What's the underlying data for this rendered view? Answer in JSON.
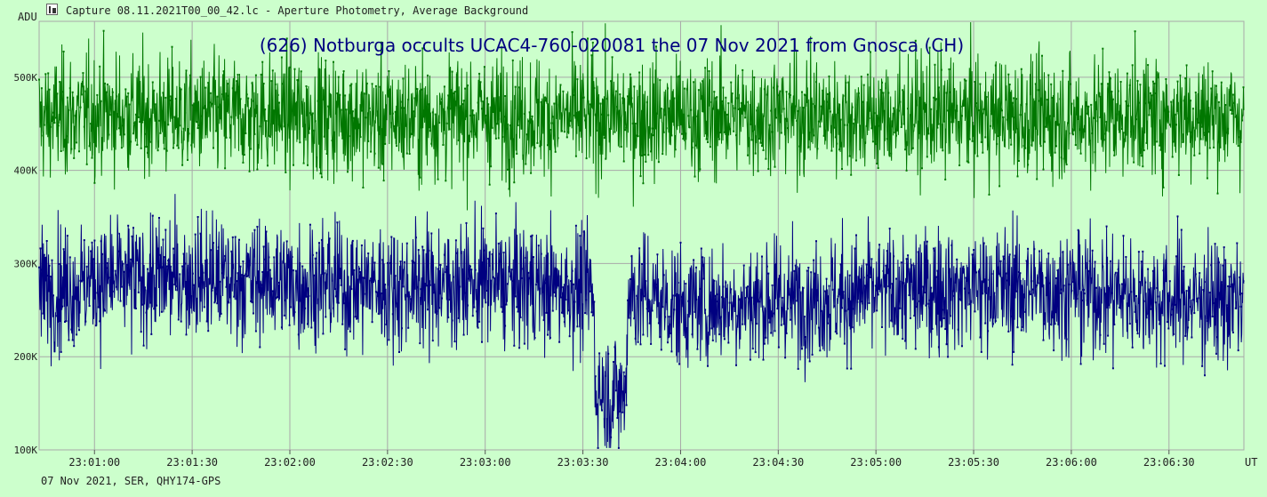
{
  "window": {
    "title": "Capture 08.11.2021T00_00_42.lc - Aperture Photometry, Average Background",
    "footer": "07 Nov 2021, SER, QHY174-GPS"
  },
  "icons": {
    "app": "light-curve-app-icon"
  },
  "colors": {
    "background": "#ccffcc",
    "grid": "#a8a8a8",
    "comparison_star": "#007700",
    "target_star": "#000080",
    "title": "#000080"
  },
  "chart_data": {
    "type": "line",
    "title": "(626) Notburga occults UCAC4-760-020081 the 07 Nov 2021 from Gnosca (CH)",
    "ylabel": "ADU",
    "xlabel": "UT",
    "ylim": [
      100000,
      560000
    ],
    "yticks": [
      {
        "value": 100000,
        "label": "100K"
      },
      {
        "value": 200000,
        "label": "200K"
      },
      {
        "value": 300000,
        "label": "300K"
      },
      {
        "value": 400000,
        "label": "400K"
      },
      {
        "value": 500000,
        "label": "500K"
      }
    ],
    "xlim": [
      "23:00:43",
      "23:06:53"
    ],
    "xticks": [
      "23:01:00",
      "23:01:30",
      "23:02:00",
      "23:02:30",
      "23:03:00",
      "23:03:30",
      "23:04:00",
      "23:04:30",
      "23:05:00",
      "23:05:30",
      "23:06:00",
      "23:06:30"
    ],
    "grid": true,
    "series": [
      {
        "role": "comparison",
        "color": "#007700",
        "mean": 458000,
        "noise_sd": 32000,
        "samples": [
          [
            "23:00:43",
            455000
          ],
          [
            "23:01:00",
            462000
          ],
          [
            "23:01:30",
            458000
          ],
          [
            "23:02:00",
            460000
          ],
          [
            "23:02:30",
            455000
          ],
          [
            "23:03:00",
            459000
          ],
          [
            "23:03:30",
            457000
          ],
          [
            "23:04:00",
            458000
          ],
          [
            "23:04:30",
            460000
          ],
          [
            "23:05:00",
            457000
          ],
          [
            "23:05:30",
            459000
          ],
          [
            "23:06:00",
            456000
          ],
          [
            "23:06:30",
            460000
          ],
          [
            "23:06:53",
            458000
          ]
        ]
      },
      {
        "role": "target",
        "color": "#000080",
        "noise_sd": 33000,
        "samples": [
          [
            "23:00:43",
            272000
          ],
          [
            "23:01:00",
            280000
          ],
          [
            "23:01:30",
            285000
          ],
          [
            "23:02:00",
            280000
          ],
          [
            "23:02:30",
            275000
          ],
          [
            "23:03:00",
            280000
          ],
          [
            "23:03:20",
            275000
          ],
          [
            "23:03:33",
            272000
          ],
          [
            "23:03:34",
            165000
          ],
          [
            "23:03:39",
            160000
          ],
          [
            "23:03:43",
            158000
          ],
          [
            "23:03:44",
            270000
          ],
          [
            "23:04:00",
            255000
          ],
          [
            "23:04:30",
            260000
          ],
          [
            "23:05:00",
            268000
          ],
          [
            "23:05:30",
            275000
          ],
          [
            "23:06:00",
            272000
          ],
          [
            "23:06:30",
            262000
          ],
          [
            "23:06:53",
            258000
          ]
        ]
      }
    ]
  }
}
